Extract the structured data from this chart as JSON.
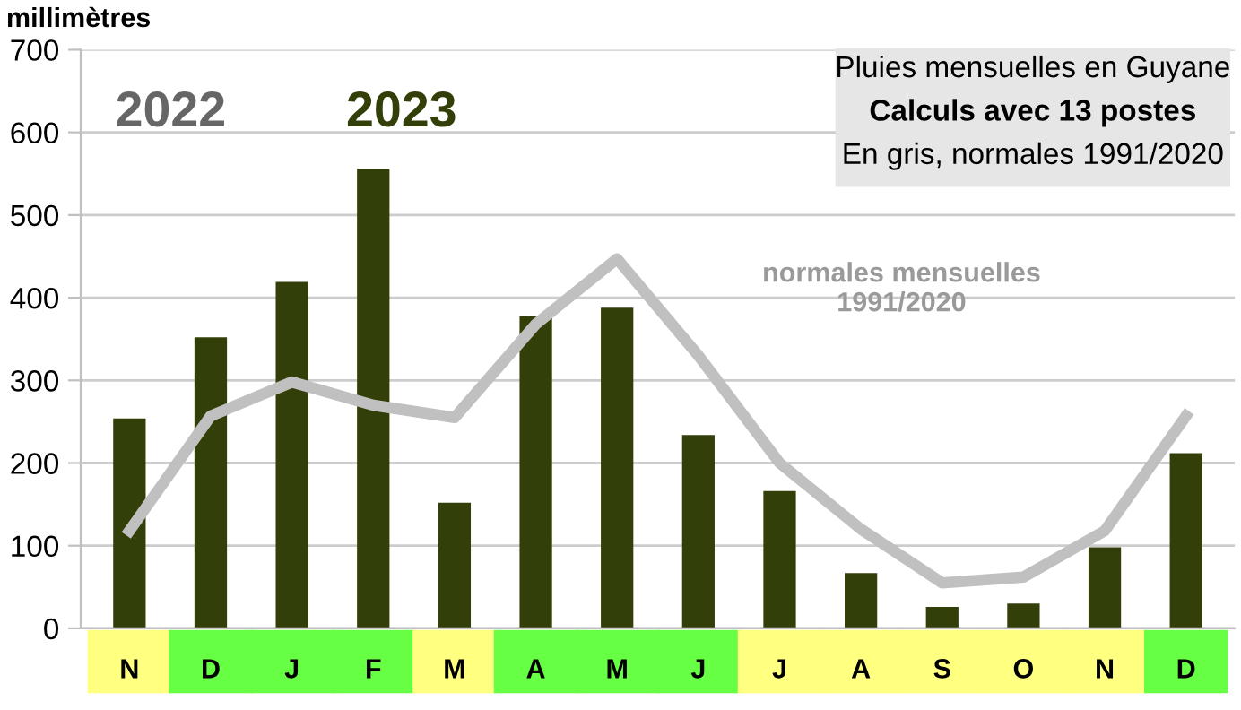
{
  "chart_data": {
    "type": "bar",
    "ylabel": "millimètres",
    "categories": [
      "N",
      "D",
      "J",
      "F",
      "M",
      "A",
      "M",
      "J",
      "J",
      "A",
      "S",
      "O",
      "N",
      "D"
    ],
    "series": [
      {
        "color": "#333f08",
        "values": [
          254,
          352,
          419,
          556,
          152,
          378,
          388,
          234,
          166,
          67,
          26,
          30,
          98,
          212
        ]
      },
      {
        "type": "line",
        "name": "normales mensuelles\n1991/2020",
        "color": "#c0c0c0",
        "values": [
          118,
          257,
          298,
          270,
          255,
          368,
          447,
          330,
          200,
          120,
          55,
          62,
          118,
          257
        ]
      }
    ],
    "ylim": [
      0,
      700
    ],
    "yticks": [
      0,
      100,
      200,
      300,
      400,
      500,
      600,
      700
    ],
    "grid": "y",
    "annotations": [
      "2022",
      "2023",
      "Pluies mensuelles en Guyane",
      "Calculs avec 13 postes",
      "En gris, normales 1991/2020"
    ]
  }
}
